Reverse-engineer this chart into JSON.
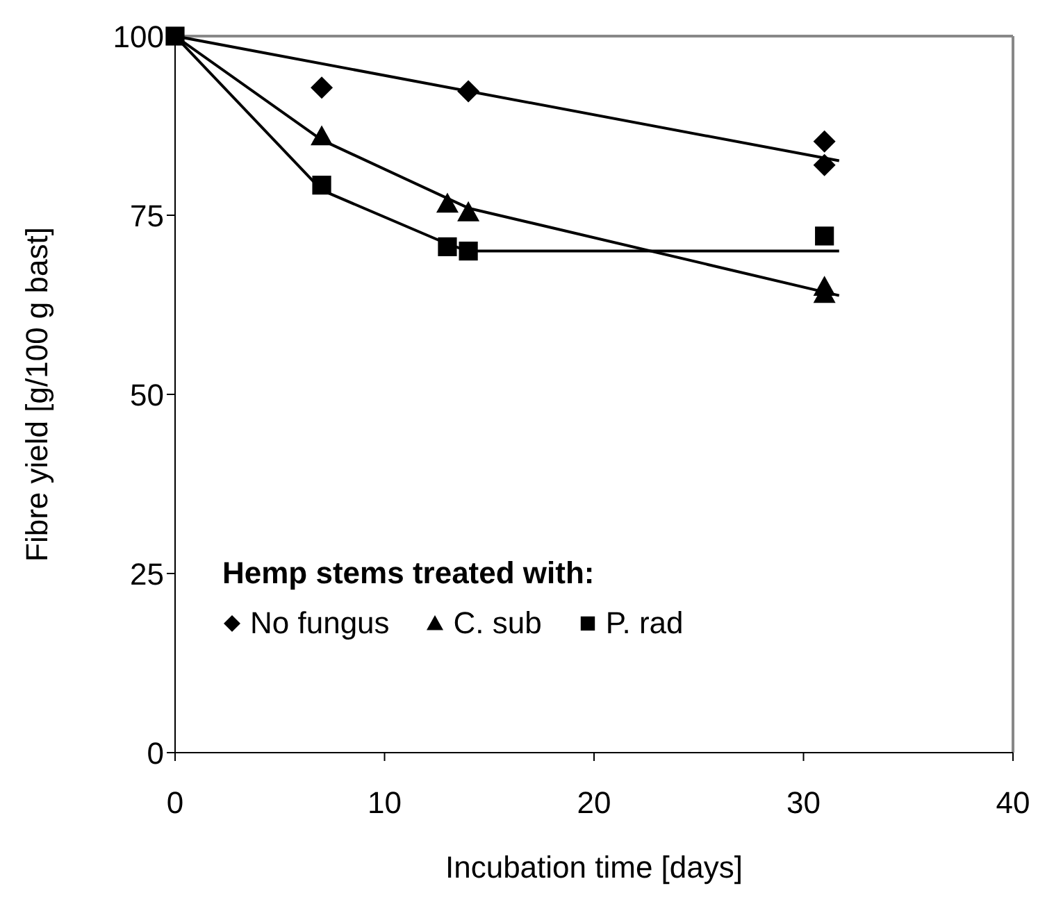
{
  "chart_data": {
    "type": "scatter",
    "xlabel": "Incubation time [days]",
    "ylabel": "Fibre yield [g/100 g bast]",
    "legend_title": "Hemp stems treated with:",
    "xlim": [
      0,
      40
    ],
    "xticks": [
      0,
      10,
      20,
      30,
      40
    ],
    "ylim": [
      0,
      100
    ],
    "yticks": [
      0,
      25,
      50,
      75,
      100
    ],
    "grid": false,
    "legend": "bottom left",
    "series": [
      {
        "name": "No fungus",
        "color": "#000000",
        "marker": "diamond",
        "x": [
          7,
          14,
          31,
          31
        ],
        "values": [
          92.8,
          92.3,
          85.3,
          82
        ]
      },
      {
        "name": "C. sub",
        "color": "#000000",
        "marker": "triangle",
        "x": [
          7,
          13,
          14,
          31,
          31
        ],
        "values": [
          86,
          76.6,
          75.4,
          65,
          64
        ]
      },
      {
        "name": "P. rad",
        "color": "#000000",
        "marker": "square",
        "x": [
          0,
          7,
          13,
          14,
          31
        ],
        "values": [
          100,
          79.2,
          70.6,
          70,
          72.1
        ]
      },
      {
        "type": "line",
        "color": "#000000",
        "marker": "none",
        "x": [
          0,
          31.7
        ],
        "values": [
          100,
          82.6
        ]
      },
      {
        "type": "line",
        "color": "#000000",
        "marker": "none",
        "x": [
          0,
          7,
          14,
          31.7
        ],
        "values": [
          100,
          85.5,
          76,
          63.8
        ]
      },
      {
        "type": "line",
        "color": "#000000",
        "marker": "none",
        "x": [
          0,
          7,
          13,
          14,
          31.7
        ],
        "values": [
          100,
          78.5,
          71,
          70,
          70
        ]
      }
    ]
  }
}
